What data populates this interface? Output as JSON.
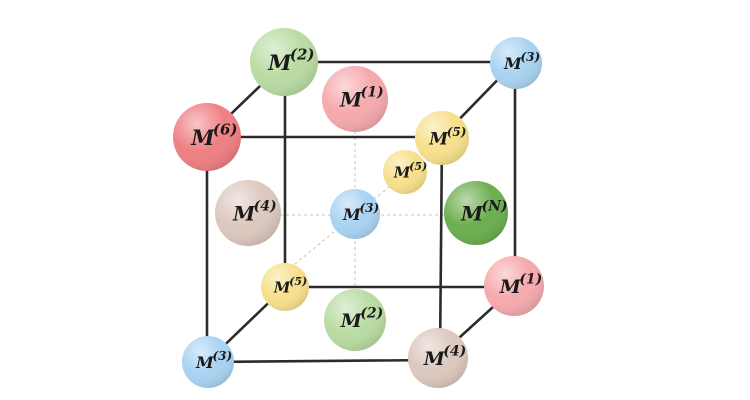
{
  "diagram": {
    "nodes": [
      {
        "id": "top-back-left",
        "base": "M",
        "sup": "(2)",
        "color": "#b9dca2",
        "text": "#1a1a1a"
      },
      {
        "id": "top-back-right",
        "base": "M",
        "sup": "(3)",
        "color": "#a9d3f2",
        "text": "#1a1a1a"
      },
      {
        "id": "top-face-center",
        "base": "M",
        "sup": "(1)",
        "color": "#f6a9ad",
        "text": "#1a1a1a"
      },
      {
        "id": "top-front-left",
        "base": "M",
        "sup": "(6)",
        "color": "#ef7f83",
        "text": "#1a1a1a"
      },
      {
        "id": "top-front-right",
        "base": "M",
        "sup": "(5)",
        "color": "#f7e08c",
        "text": "#1a1a1a"
      },
      {
        "id": "inner-diagonal",
        "base": "M",
        "sup": "(5)",
        "color": "#f7e08c",
        "text": "#1a1a1a"
      },
      {
        "id": "left-face-center",
        "base": "M",
        "sup": "(4)",
        "color": "#dcc8be",
        "text": "#1a1a1a"
      },
      {
        "id": "body-center",
        "base": "M",
        "sup": "(3)",
        "color": "#a9d3f2",
        "text": "#1a1a1a"
      },
      {
        "id": "right-face-center",
        "base": "M",
        "sup": "(N)",
        "color": "#6cae4f",
        "text": "#1a1a1a"
      },
      {
        "id": "bottom-back-left",
        "base": "M",
        "sup": "(5)",
        "color": "#f7e08c",
        "text": "#1a1a1a"
      },
      {
        "id": "bottom-back-right",
        "base": "M",
        "sup": "(1)",
        "color": "#f6a9ad",
        "text": "#1a1a1a"
      },
      {
        "id": "bottom-face-center",
        "base": "M",
        "sup": "(2)",
        "color": "#b9dca2",
        "text": "#1a1a1a"
      },
      {
        "id": "bottom-front-left",
        "base": "M",
        "sup": "(3)",
        "color": "#a9d3f2",
        "text": "#1a1a1a"
      },
      {
        "id": "bottom-front-right",
        "base": "M",
        "sup": "(4)",
        "color": "#dcc8be",
        "text": "#1a1a1a"
      }
    ]
  }
}
